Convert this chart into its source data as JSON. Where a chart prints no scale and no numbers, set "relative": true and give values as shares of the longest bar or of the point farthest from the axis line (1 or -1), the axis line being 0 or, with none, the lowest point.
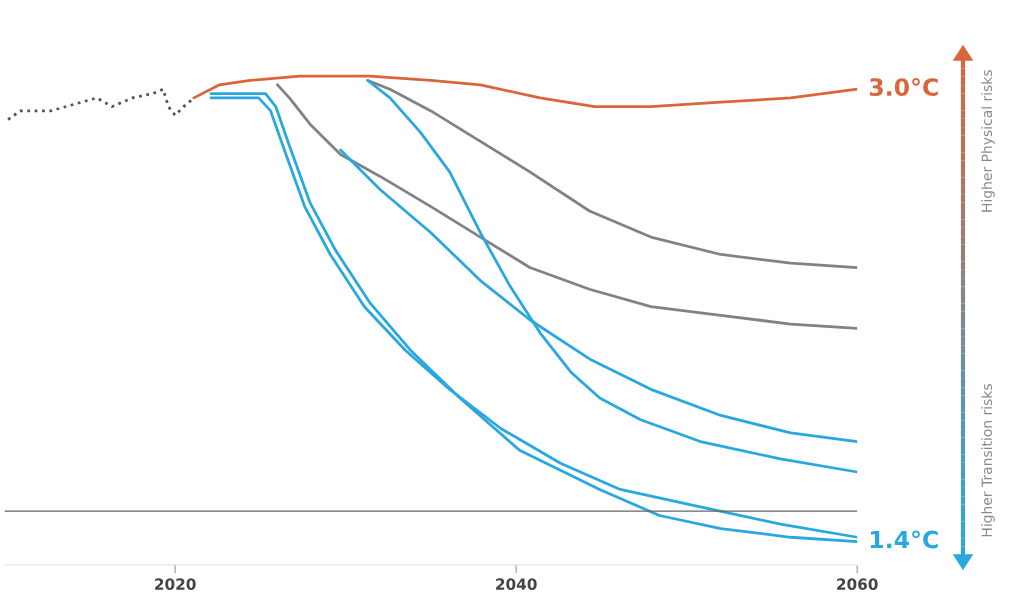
{
  "chart_data": {
    "type": "line",
    "relative": true,
    "xlim": [
      2010,
      2060
    ],
    "xticks": [
      2020,
      2040,
      2060
    ],
    "grid": false,
    "legend": false,
    "series": [
      {
        "color": "#555555",
        "line_style": "dotted",
        "x": [
          2010.2,
          2010.9,
          2012.7,
          2014.5,
          2015.4,
          2016.3,
          2017.5,
          2018.7,
          2019.3,
          2019.6,
          2020.0,
          2020.5,
          2021.1
        ],
        "values": [
          0.9,
          0.92,
          0.92,
          0.94,
          0.95,
          0.93,
          0.95,
          0.96,
          0.97,
          0.93,
          0.91,
          0.93,
          0.95
        ]
      },
      {
        "color": "#d9663a",
        "x": [
          2021.1,
          2022.6,
          2024.4,
          2027.3,
          2031.4,
          2035.0,
          2037.9,
          2041.4,
          2044.6,
          2047.9,
          2052.0,
          2056.1,
          2060.0
        ],
        "values": [
          0.95,
          0.98,
          0.99,
          1.0,
          1.0,
          0.99,
          0.98,
          0.95,
          0.93,
          0.93,
          0.94,
          0.95,
          0.97
        ]
      },
      {
        "color": "#7f8287",
        "x": [
          2026.0,
          2026.7,
          2027.9,
          2029.7,
          2032.0,
          2035.0,
          2037.9,
          2040.8,
          2044.3,
          2047.9,
          2052.0,
          2056.1,
          2060.0
        ],
        "values": [
          0.98,
          0.95,
          0.89,
          0.82,
          0.77,
          0.7,
          0.63,
          0.56,
          0.51,
          0.47,
          0.45,
          0.43,
          0.42
        ]
      },
      {
        "color": "#7f8287",
        "x": [
          2031.3,
          2032.6,
          2035.0,
          2037.9,
          2040.8,
          2044.3,
          2047.9,
          2052.0,
          2056.1,
          2060.0
        ],
        "values": [
          0.99,
          0.97,
          0.92,
          0.85,
          0.78,
          0.69,
          0.63,
          0.59,
          0.57,
          0.56
        ]
      },
      {
        "color": "#29a8e0",
        "x": [
          2022.1,
          2025.3,
          2025.9,
          2026.7,
          2027.9,
          2029.4,
          2031.4,
          2033.8,
          2036.7,
          2040.2,
          2044.9,
          2048.4,
          2052.0,
          2056.1,
          2060.0
        ],
        "values": [
          0.96,
          0.96,
          0.93,
          0.84,
          0.71,
          0.6,
          0.48,
          0.37,
          0.26,
          0.14,
          0.05,
          -0.01,
          -0.04,
          -0.06,
          -0.07
        ]
      },
      {
        "color": "#29a8e0",
        "x": [
          2022.1,
          2024.9,
          2025.6,
          2026.5,
          2027.6,
          2029.1,
          2031.1,
          2033.5,
          2036.1,
          2039.1,
          2042.6,
          2046.1,
          2050.8,
          2055.5,
          2060.0
        ],
        "values": [
          0.95,
          0.95,
          0.92,
          0.82,
          0.7,
          0.59,
          0.47,
          0.37,
          0.28,
          0.19,
          0.11,
          0.05,
          0.01,
          -0.03,
          -0.06
        ]
      },
      {
        "color": "#29a8e0",
        "x": [
          2029.7,
          2032.0,
          2035.0,
          2037.9,
          2040.8,
          2044.3,
          2047.9,
          2052.0,
          2056.1,
          2060.0
        ],
        "values": [
          0.83,
          0.74,
          0.64,
          0.53,
          0.44,
          0.35,
          0.28,
          0.22,
          0.18,
          0.16
        ]
      },
      {
        "color": "#29a8e0",
        "x": [
          2031.3,
          2032.6,
          2034.4,
          2036.1,
          2037.9,
          2039.6,
          2041.4,
          2043.2,
          2044.9,
          2047.3,
          2050.8,
          2055.5,
          2060.0
        ],
        "values": [
          0.99,
          0.95,
          0.87,
          0.78,
          0.64,
          0.52,
          0.41,
          0.32,
          0.26,
          0.21,
          0.16,
          0.12,
          0.09
        ]
      }
    ],
    "annotations": [
      {
        "text": "3.0°C",
        "x": 2060,
        "y": 0.97
      },
      {
        "text": "1.4°C",
        "x": 2060,
        "y": -0.07
      },
      "Higher Physical risks",
      "Higher Transition risks"
    ]
  }
}
